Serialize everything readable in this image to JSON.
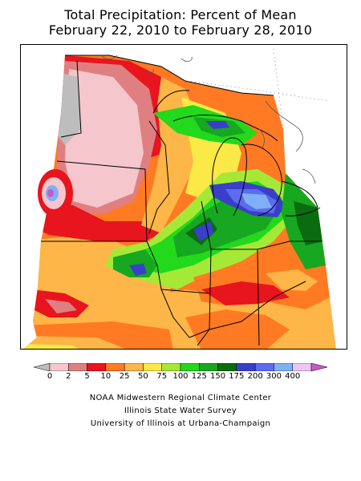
{
  "title": {
    "line1": "Total Precipitation: Percent of Mean",
    "line2": "February 22, 2010 to February 28, 2010"
  },
  "legend": {
    "ticks": [
      "0",
      "2",
      "5",
      "10",
      "25",
      "50",
      "75",
      "100",
      "125",
      "150",
      "175",
      "200",
      "300",
      "400"
    ],
    "colors": [
      "#bdbdbd",
      "#f5c6cc",
      "#e07f82",
      "#e8141e",
      "#ff7a23",
      "#fdb647",
      "#fae946",
      "#a6e836",
      "#22d91c",
      "#17a721",
      "#0b6b10",
      "#3a3fc9",
      "#5b6cf0",
      "#7fb0f5",
      "#f0c4f5",
      "#c85ac8"
    ]
  },
  "credits": {
    "line1": "NOAA Midwestern Regional Climate Center",
    "line2": "Illinois State Water Survey",
    "line3": "University of Illinois at Urbana-Champaign"
  }
}
